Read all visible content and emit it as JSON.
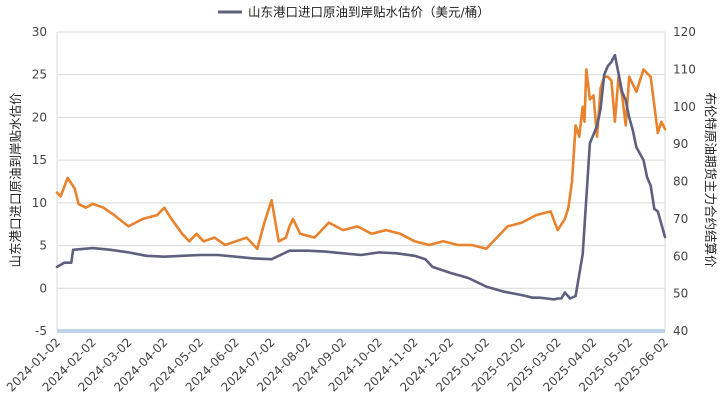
{
  "chart_data": {
    "type": "line",
    "legend": {
      "placement": "top-center",
      "entries": [
        "山东港口进口原油到岸贴水估价（美元/桶）"
      ]
    },
    "left_axis": {
      "label": "山东港口进口原油到岸贴水估价",
      "ylim": [
        -5,
        30
      ],
      "ticks": [
        -5,
        0,
        5,
        10,
        15,
        20,
        25,
        30
      ]
    },
    "right_axis": {
      "label": "布伦特原油期货主力合约结算价",
      "ylim": [
        40,
        120
      ],
      "ticks": [
        40,
        50,
        60,
        70,
        80,
        90,
        100,
        110,
        120
      ]
    },
    "x_ticks": [
      "2024-01-02",
      "2024-02-02",
      "2024-03-02",
      "2024-04-02",
      "2024-05-02",
      "2024-06-02",
      "2024-07-02",
      "2024-08-02",
      "2024-09-02",
      "2024-10-02",
      "2024-11-02",
      "2024-12-02",
      "2025-01-02",
      "2025-02-02",
      "2025-03-02",
      "2025-04-02",
      "2025-05-02",
      "2025-06-02"
    ],
    "grid": "horizontal",
    "colors": {
      "premium": "#5f5f7e",
      "brent": "#e8822c",
      "grid": "#d9d9d9",
      "baseline": "#bfd3ea"
    },
    "series": [
      {
        "name": "山东港口进口原油到岸贴水估价（美元/桶）",
        "axis": "left",
        "x": [
          0,
          0.2,
          0.4,
          0.45,
          1.0,
          1.5,
          2.0,
          2.5,
          3.0,
          3.5,
          4.0,
          4.5,
          5.0,
          5.5,
          6.0,
          6.5,
          7.0,
          7.5,
          8.0,
          8.5,
          9.0,
          9.5,
          10.0,
          10.3,
          10.5,
          11.0,
          11.5,
          12.0,
          12.5,
          13.0,
          13.3,
          13.5,
          13.7,
          13.9,
          14.0,
          14.1,
          14.2,
          14.35,
          14.5,
          14.7,
          14.9,
          15.0,
          15.1,
          15.2,
          15.25,
          15.3,
          15.35,
          15.4,
          15.5,
          15.6,
          15.8,
          15.9,
          16.0,
          16.1,
          16.2,
          16.4,
          16.5,
          16.6,
          16.7,
          16.8,
          17.0
        ],
        "values": [
          2.5,
          3.0,
          3.0,
          4.5,
          4.7,
          4.5,
          4.2,
          3.8,
          3.7,
          3.8,
          3.9,
          3.9,
          3.7,
          3.5,
          3.4,
          4.4,
          4.4,
          4.3,
          4.1,
          3.9,
          4.2,
          4.1,
          3.8,
          3.4,
          2.5,
          1.8,
          1.2,
          0.2,
          -0.4,
          -0.8,
          -1.1,
          -1.1,
          -1.2,
          -1.3,
          -1.2,
          -1.2,
          -0.5,
          -1.2,
          -0.9,
          4.0,
          17.0,
          18.0,
          19.0,
          21.0,
          23.0,
          25.0,
          25.5,
          26.0,
          26.5,
          27.3,
          23.0,
          22.0,
          20.0,
          18.5,
          16.5,
          15.0,
          13.0,
          12.0,
          9.3,
          9.0,
          6.0
        ]
      },
      {
        "name": "布伦特原油期货主力合约结算价",
        "axis": "right",
        "x": [
          0,
          0.1,
          0.3,
          0.5,
          0.6,
          0.8,
          1.0,
          1.3,
          1.6,
          2.0,
          2.4,
          2.8,
          3.0,
          3.2,
          3.5,
          3.7,
          3.9,
          4.1,
          4.4,
          4.7,
          5.0,
          5.3,
          5.6,
          5.8,
          6.0,
          6.2,
          6.4,
          6.5,
          6.6,
          6.8,
          7.2,
          7.6,
          8.0,
          8.4,
          8.8,
          9.2,
          9.6,
          10.0,
          10.4,
          10.8,
          11.2,
          11.6,
          12.0,
          12.3,
          12.6,
          13.0,
          13.4,
          13.8,
          14.0,
          14.2,
          14.3,
          14.4,
          14.5,
          14.6,
          14.7,
          14.75,
          14.8,
          14.9,
          15.0,
          15.1,
          15.2,
          15.3,
          15.4,
          15.5,
          15.6,
          15.7,
          15.8,
          15.9,
          16.0,
          16.2,
          16.4,
          16.6,
          16.8,
          16.9,
          17.0
        ],
        "values": [
          77,
          76,
          81,
          78,
          74,
          73,
          74,
          73,
          71,
          68,
          70,
          71,
          73,
          70,
          66,
          64,
          66,
          64,
          65,
          63,
          64,
          65,
          62,
          69,
          75,
          64,
          65,
          68,
          70,
          66,
          65,
          69,
          67,
          68,
          66,
          67,
          66,
          64,
          63,
          64,
          63,
          63,
          62,
          65,
          68,
          69,
          71,
          72,
          67,
          70,
          73,
          80,
          95,
          92,
          100,
          96,
          110,
          102,
          103,
          92,
          105,
          108,
          108,
          107,
          96,
          108,
          103,
          95,
          108,
          104,
          110,
          108,
          93,
          96,
          94
        ]
      }
    ]
  }
}
